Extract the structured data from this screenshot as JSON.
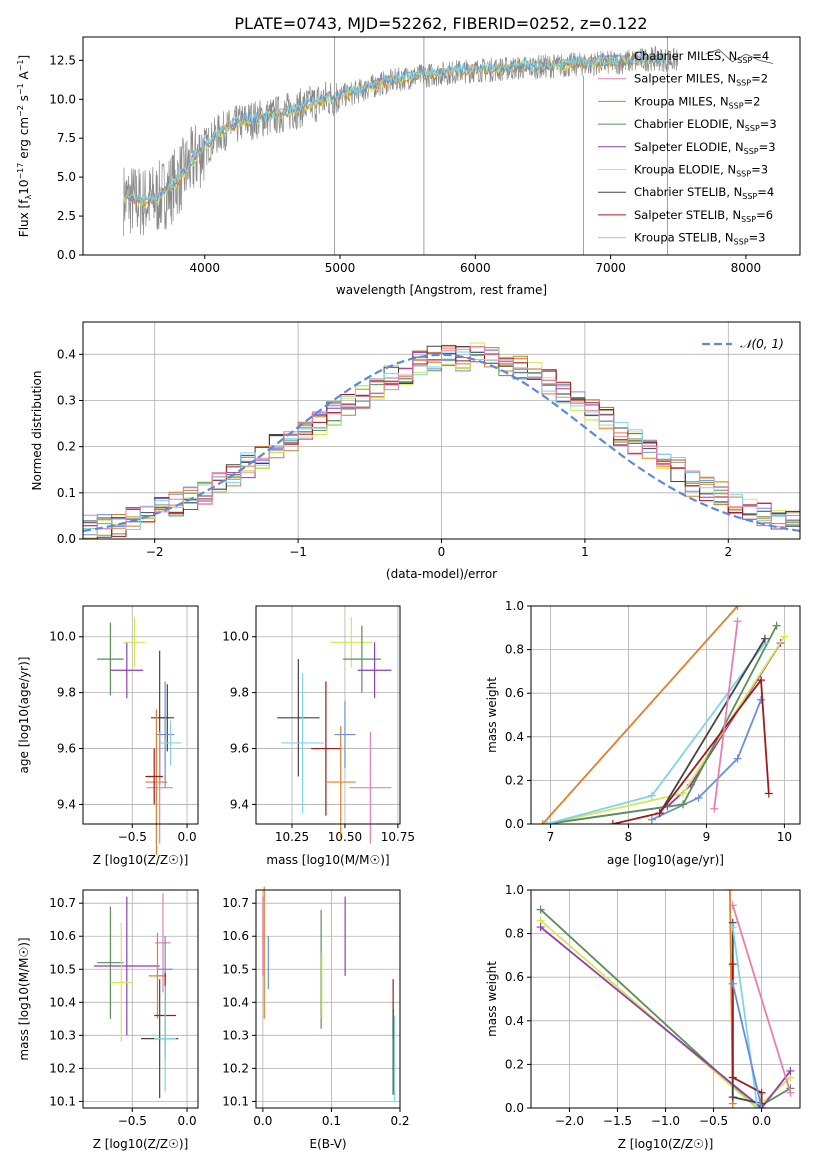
{
  "title": "PLATE=0743, MJD=52262, FIBERID=0252, z=0.122",
  "colors": {
    "chabrier_miles": "#6a8fd8",
    "salpeter_miles": "#e27f2a",
    "kroupa_miles": "#c4822f",
    "chabrier_elodie": "#5a8f5c",
    "salpeter_elodie": "#8e3fb0",
    "kroupa_elodie": "#d8e64e",
    "chabrier_stelib": "#444444",
    "salpeter_stelib": "#a01a1a",
    "kroupa_stelib": "#7fd4e6",
    "pink": "#e680b0",
    "data": "#8a8a8a",
    "gauss": "#5b8ad8"
  },
  "chart_data": [
    {
      "type": "line",
      "xlabel": "wavelength [Angstrom, rest frame]",
      "ylabel": "Flux [f_λ 10^-17 erg cm^-2 s^-1 A^-1]",
      "xlim": [
        3100,
        8400
      ],
      "ylim": [
        0,
        14
      ],
      "xticks": [
        "4000",
        "5000",
        "6000",
        "7000",
        "8000"
      ],
      "yticks": [
        "0.0",
        "2.5",
        "5.0",
        "7.5",
        "10.0",
        "12.5"
      ],
      "legend": [
        {
          "label": "Chabrier MILES, N",
          "sub": "SSP",
          "val": "=4",
          "color": "chabrier_miles"
        },
        {
          "label": "Salpeter MILES, N",
          "sub": "SSP",
          "val": "=2",
          "color": "pink"
        },
        {
          "label": "Kroupa MILES, N",
          "sub": "SSP",
          "val": "=2",
          "color": "kroupa_miles"
        },
        {
          "label": "Chabrier ELODIE, N",
          "sub": "SSP",
          "val": "=3",
          "color": "chabrier_elodie"
        },
        {
          "label": "Salpeter ELODIE, N",
          "sub": "SSP",
          "val": "=3",
          "color": "salpeter_elodie"
        },
        {
          "label": "Kroupa ELODIE, N",
          "sub": "SSP",
          "val": "=3",
          "color": "kroupa_elodie"
        },
        {
          "label": "Chabrier STELIB, N",
          "sub": "SSP",
          "val": "=4",
          "color": "chabrier_stelib"
        },
        {
          "label": "Salpeter STELIB, N",
          "sub": "SSP",
          "val": "=6",
          "color": "salpeter_stelib"
        },
        {
          "label": "Kroupa STELIB, N",
          "sub": "SSP",
          "val": "=3",
          "color": "kroupa_stelib"
        }
      ],
      "spectrum_trend": {
        "x": [
          3400,
          3550,
          3650,
          3750,
          3850,
          3950,
          4100,
          4300,
          4500,
          4700,
          4900,
          5100,
          5300,
          5500,
          5700,
          5900,
          6100,
          6300,
          6500,
          6700,
          6900,
          7100,
          7300,
          7500
        ],
        "y": [
          3.6,
          3.4,
          3.6,
          4.3,
          5.3,
          6.4,
          7.8,
          8.6,
          8.9,
          9.4,
          10.0,
          10.4,
          11.0,
          11.4,
          11.6,
          11.8,
          11.9,
          12.0,
          12.1,
          12.2,
          12.3,
          12.4,
          12.6,
          12.5
        ]
      },
      "tail": {
        "x": [
          7700,
          7800,
          7900,
          8000,
          8100,
          8200
        ],
        "y": [
          12.9,
          13.2,
          12.4,
          12.9,
          12.5,
          12.3
        ]
      },
      "spikes": [
        {
          "x": 4960,
          "y0": 0,
          "y1": 14
        },
        {
          "x": 5620,
          "y0": 0,
          "y1": 14
        },
        {
          "x": 6800,
          "y0": 0,
          "y1": 11.5
        },
        {
          "x": 7420,
          "y0": 0,
          "y1": 14
        }
      ]
    },
    {
      "type": "step",
      "xlabel": "(data-model)/error",
      "ylabel": "Normed distribution",
      "xlim": [
        -2.5,
        2.5
      ],
      "ylim": [
        0,
        0.47
      ],
      "xticks": [
        "−2",
        "−1",
        "0",
        "1",
        "2"
      ],
      "yticks": [
        "0.0",
        "0.1",
        "0.2",
        "0.3",
        "0.4"
      ],
      "legend": "𝒩(0, 1)",
      "bin_edges_start": -2.5,
      "bin_width": 0.1,
      "series_base": [
        0.025,
        0.028,
        0.033,
        0.045,
        0.05,
        0.065,
        0.075,
        0.09,
        0.1,
        0.12,
        0.14,
        0.16,
        0.18,
        0.2,
        0.215,
        0.23,
        0.25,
        0.27,
        0.29,
        0.31,
        0.33,
        0.35,
        0.36,
        0.38,
        0.39,
        0.4,
        0.39,
        0.4,
        0.39,
        0.38,
        0.37,
        0.36,
        0.34,
        0.32,
        0.3,
        0.28,
        0.26,
        0.23,
        0.21,
        0.19,
        0.17,
        0.15,
        0.12,
        0.11,
        0.1,
        0.08,
        0.07,
        0.055,
        0.045,
        0.035
      ]
    },
    {
      "type": "errorbar",
      "xlabel": "Z [log10(Z/Z☉)]",
      "ylabel": "age  [log10(age/yr)]",
      "xlim": [
        -0.95,
        0.1
      ],
      "ylim": [
        9.33,
        10.11
      ],
      "xticks": [
        {
          "v": -0.5,
          "t": "−0.5"
        },
        {
          "v": 0.0,
          "t": "0.0"
        }
      ],
      "yticks": [
        {
          "v": 9.4,
          "t": "9.4"
        },
        {
          "v": 9.6,
          "t": "9.6"
        },
        {
          "v": 9.8,
          "t": "9.8"
        },
        {
          "v": 10.0,
          "t": "10.0"
        }
      ],
      "points": [
        {
          "x": -0.7,
          "y": 9.92,
          "dx": 0.12,
          "dy": 0.13,
          "color": "chabrier_elodie"
        },
        {
          "x": -0.55,
          "y": 9.88,
          "dx": 0.15,
          "dy": 0.1,
          "color": "salpeter_elodie"
        },
        {
          "x": -0.48,
          "y": 9.98,
          "dx": 0.1,
          "dy": 0.09,
          "color": "kroupa_elodie"
        },
        {
          "x": -0.25,
          "y": 9.71,
          "dx": 0.08,
          "dy": 0.24,
          "color": "chabrier_stelib"
        },
        {
          "x": -0.18,
          "y": 9.71,
          "dx": 0.06,
          "dy": 0.12,
          "color": "chabrier_stelib"
        },
        {
          "x": -0.2,
          "y": 9.65,
          "dx": 0.08,
          "dy": 0.19,
          "color": "chabrier_miles"
        },
        {
          "x": -0.28,
          "y": 9.48,
          "dx": 0.1,
          "dy": 0.26,
          "color": "salpeter_miles"
        },
        {
          "x": -0.25,
          "y": 9.46,
          "dx": 0.12,
          "dy": 0.2,
          "color": "pink"
        },
        {
          "x": -0.15,
          "y": 9.62,
          "dx": 0.1,
          "dy": 0.08,
          "color": "kroupa_stelib"
        },
        {
          "x": -0.3,
          "y": 9.5,
          "dx": 0.08,
          "dy": 0.1,
          "color": "salpeter_stelib"
        }
      ]
    },
    {
      "type": "errorbar",
      "xlabel": "mass [log10(M/M☉)]",
      "ylabel": "",
      "xlim": [
        10.08,
        10.76
      ],
      "ylim": [
        9.33,
        10.11
      ],
      "xticks": [
        {
          "v": 10.25,
          "t": "10.25"
        },
        {
          "v": 10.5,
          "t": "10.50"
        },
        {
          "v": 10.75,
          "t": "10.75"
        }
      ],
      "yticks": [
        {
          "v": 9.4,
          "t": "9.4"
        },
        {
          "v": 9.6,
          "t": "9.6"
        },
        {
          "v": 9.8,
          "t": "9.8"
        },
        {
          "v": 10.0,
          "t": "10.0"
        }
      ],
      "points": [
        {
          "x": 10.28,
          "y": 9.71,
          "dx": 0.1,
          "dy": 0.21,
          "color": "chabrier_stelib"
        },
        {
          "x": 10.3,
          "y": 9.62,
          "dx": 0.1,
          "dy": 0.25,
          "color": "kroupa_stelib"
        },
        {
          "x": 10.41,
          "y": 9.6,
          "dx": 0.07,
          "dy": 0.24,
          "color": "salpeter_stelib"
        },
        {
          "x": 10.48,
          "y": 9.48,
          "dx": 0.07,
          "dy": 0.2,
          "color": "salpeter_miles"
        },
        {
          "x": 10.5,
          "y": 9.65,
          "dx": 0.05,
          "dy": 0.12,
          "color": "chabrier_miles"
        },
        {
          "x": 10.53,
          "y": 9.98,
          "dx": 0.1,
          "dy": 0.09,
          "color": "kroupa_elodie"
        },
        {
          "x": 10.58,
          "y": 9.92,
          "dx": 0.09,
          "dy": 0.12,
          "color": "chabrier_elodie"
        },
        {
          "x": 10.64,
          "y": 9.88,
          "dx": 0.08,
          "dy": 0.1,
          "color": "salpeter_elodie"
        },
        {
          "x": 10.62,
          "y": 9.46,
          "dx": 0.1,
          "dy": 0.2,
          "color": "pink"
        }
      ]
    },
    {
      "type": "line",
      "xlabel": "age  [log10(age/yr)]",
      "ylabel": "mass weight",
      "xlim": [
        6.75,
        10.2
      ],
      "ylim": [
        0,
        1
      ],
      "xticks": [
        {
          "v": 7,
          "t": "7"
        },
        {
          "v": 8,
          "t": "8"
        },
        {
          "v": 9,
          "t": "9"
        },
        {
          "v": 10,
          "t": "10"
        }
      ],
      "yticks": [
        {
          "v": 0,
          "t": "0.0"
        },
        {
          "v": 0.2,
          "t": "0.2"
        },
        {
          "v": 0.4,
          "t": "0.4"
        },
        {
          "v": 0.6,
          "t": "0.6"
        },
        {
          "v": 0.8,
          "t": "0.8"
        },
        {
          "v": 1,
          "t": "1.0"
        }
      ],
      "series": [
        {
          "color": "salpeter_miles",
          "x": [
            6.9,
            9.4
          ],
          "y": [
            0.0,
            1.0
          ]
        },
        {
          "color": "chabrier_miles",
          "x": [
            8.3,
            8.9,
            9.4,
            9.7
          ],
          "y": [
            0.02,
            0.12,
            0.3,
            0.57
          ]
        },
        {
          "color": "salpeter_elodie",
          "x": [
            6.95,
            8.5,
            8.8,
            9.95
          ],
          "y": [
            0.0,
            0.08,
            0.18,
            0.83
          ]
        },
        {
          "color": "kroupa_elodie",
          "x": [
            6.95,
            8.7,
            10.0
          ],
          "y": [
            0.0,
            0.14,
            0.86
          ]
        },
        {
          "color": "chabrier_elodie",
          "x": [
            6.95,
            8.7,
            9.9
          ],
          "y": [
            0.0,
            0.09,
            0.91
          ]
        },
        {
          "color": "kroupa_stelib",
          "x": [
            6.95,
            8.3,
            9.75
          ],
          "y": [
            0.0,
            0.13,
            0.83
          ]
        },
        {
          "color": "chabrier_stelib",
          "x": [
            8.4,
            9.75
          ],
          "y": [
            0.05,
            0.85
          ]
        },
        {
          "color": "salpeter_stelib",
          "x": [
            7.8,
            8.4,
            9.7,
            9.8
          ],
          "y": [
            0.0,
            0.05,
            0.66,
            0.14
          ]
        },
        {
          "color": "pink",
          "x": [
            9.1,
            9.4
          ],
          "y": [
            0.07,
            0.93
          ]
        }
      ]
    },
    {
      "type": "errorbar",
      "xlabel": "Z [log10(Z/Z☉)]",
      "ylabel": "mass [log10(M/M☉)]",
      "xlim": [
        -0.95,
        0.1
      ],
      "ylim": [
        10.08,
        10.74
      ],
      "xticks": [
        {
          "v": -0.5,
          "t": "−0.5"
        },
        {
          "v": 0.0,
          "t": "0.0"
        }
      ],
      "yticks": [
        {
          "v": 10.1,
          "t": "10.1"
        },
        {
          "v": 10.2,
          "t": "10.2"
        },
        {
          "v": 10.3,
          "t": "10.3"
        },
        {
          "v": 10.4,
          "t": "10.4"
        },
        {
          "v": 10.5,
          "t": "10.5"
        },
        {
          "v": 10.6,
          "t": "10.6"
        },
        {
          "v": 10.7,
          "t": "10.7"
        }
      ],
      "points": [
        {
          "x": -0.7,
          "y": 10.52,
          "dx": 0.12,
          "dy": 0.17,
          "color": "chabrier_elodie"
        },
        {
          "x": -0.55,
          "y": 10.51,
          "dx": 0.3,
          "dy": 0.21,
          "color": "salpeter_elodie"
        },
        {
          "x": -0.6,
          "y": 10.46,
          "dx": 0.1,
          "dy": 0.18,
          "color": "kroupa_elodie"
        },
        {
          "x": -0.22,
          "y": 10.58,
          "dx": 0.07,
          "dy": 0.15,
          "color": "pink"
        },
        {
          "x": -0.2,
          "y": 10.5,
          "dx": 0.07,
          "dy": 0.1,
          "color": "chabrier_miles"
        },
        {
          "x": -0.27,
          "y": 10.48,
          "dx": 0.08,
          "dy": 0.13,
          "color": "salpeter_miles"
        },
        {
          "x": -0.2,
          "y": 10.36,
          "dx": 0.1,
          "dy": 0.13,
          "color": "salpeter_stelib"
        },
        {
          "x": -0.25,
          "y": 10.29,
          "dx": 0.17,
          "dy": 0.18,
          "color": "chabrier_stelib"
        },
        {
          "x": -0.2,
          "y": 10.29,
          "dx": 0.1,
          "dy": 0.16,
          "color": "kroupa_stelib"
        }
      ]
    },
    {
      "type": "errorbar",
      "xlabel": "E(B-V)",
      "ylabel": "",
      "xlim": [
        -0.01,
        0.2
      ],
      "ylim": [
        10.08,
        10.74
      ],
      "xticks": [
        {
          "v": 0.0,
          "t": "0.0"
        },
        {
          "v": 0.1,
          "t": "0.1"
        },
        {
          "v": 0.2,
          "t": "0.2"
        }
      ],
      "yticks": [
        {
          "v": 10.1,
          "t": "10.1"
        },
        {
          "v": 10.2,
          "t": "10.2"
        },
        {
          "v": 10.3,
          "t": "10.3"
        },
        {
          "v": 10.4,
          "t": "10.4"
        },
        {
          "v": 10.5,
          "t": "10.5"
        },
        {
          "v": 10.6,
          "t": "10.6"
        },
        {
          "v": 10.7,
          "t": "10.7"
        }
      ],
      "points": [
        {
          "x": 0.002,
          "y": 10.55,
          "dx": 0.0,
          "dy": 0.2,
          "color": "salpeter_miles"
        },
        {
          "x": 0.008,
          "y": 10.52,
          "dx": 0.0,
          "dy": 0.08,
          "color": "chabrier_miles"
        },
        {
          "x": 0.0,
          "y": 10.6,
          "dx": 0.0,
          "dy": 0.12,
          "color": "pink"
        },
        {
          "x": 0.085,
          "y": 10.5,
          "dx": 0.0,
          "dy": 0.18,
          "color": "chabrier_elodie"
        },
        {
          "x": 0.086,
          "y": 10.45,
          "dx": 0.0,
          "dy": 0.1,
          "color": "kroupa_elodie"
        },
        {
          "x": 0.12,
          "y": 10.6,
          "dx": 0.0,
          "dy": 0.12,
          "color": "salpeter_elodie"
        },
        {
          "x": 0.19,
          "y": 10.38,
          "dx": 0.0,
          "dy": 0.09,
          "color": "salpeter_stelib"
        },
        {
          "x": 0.19,
          "y": 10.25,
          "dx": 0.0,
          "dy": 0.13,
          "color": "chabrier_stelib"
        },
        {
          "x": 0.192,
          "y": 10.23,
          "dx": 0.0,
          "dy": 0.13,
          "color": "kroupa_stelib"
        }
      ]
    },
    {
      "type": "line",
      "xlabel": "Z [log10(Z/Z☉)]",
      "ylabel": "mass weight",
      "xlim": [
        -2.4,
        0.4
      ],
      "ylim": [
        0,
        1
      ],
      "xticks": [
        {
          "v": -2.0,
          "t": "−2.0"
        },
        {
          "v": -1.5,
          "t": "−1.5"
        },
        {
          "v": -1.0,
          "t": "−1.0"
        },
        {
          "v": -0.5,
          "t": "−0.5"
        },
        {
          "v": 0.0,
          "t": "0.0"
        }
      ],
      "yticks": [
        {
          "v": 0,
          "t": "0.0"
        },
        {
          "v": 0.2,
          "t": "0.2"
        },
        {
          "v": 0.4,
          "t": "0.4"
        },
        {
          "v": 0.6,
          "t": "0.6"
        },
        {
          "v": 0.8,
          "t": "0.8"
        },
        {
          "v": 1,
          "t": "1.0"
        }
      ],
      "series": [
        {
          "color": "chabrier_elodie",
          "x": [
            -2.3,
            -0.05,
            0.3
          ],
          "y": [
            0.91,
            0.0,
            0.09
          ]
        },
        {
          "color": "kroupa_elodie",
          "x": [
            -2.3,
            -0.05,
            0.3
          ],
          "y": [
            0.86,
            0.0,
            0.14
          ]
        },
        {
          "color": "salpeter_elodie",
          "x": [
            -2.3,
            0.0,
            0.3
          ],
          "y": [
            0.83,
            0.0,
            0.17
          ]
        },
        {
          "color": "salpeter_miles",
          "x": [
            -0.33,
            -0.3
          ],
          "y": [
            1.0,
            0.02
          ]
        },
        {
          "color": "pink",
          "x": [
            -0.3,
            0.3
          ],
          "y": [
            0.93,
            0.07
          ]
        },
        {
          "color": "chabrier_stelib",
          "x": [
            -0.3,
            -0.3,
            0.0
          ],
          "y": [
            0.85,
            0.05,
            0.02
          ]
        },
        {
          "color": "kroupa_stelib",
          "x": [
            -0.3,
            -0.05
          ],
          "y": [
            0.83,
            0.02
          ]
        },
        {
          "color": "salpeter_stelib",
          "x": [
            -0.3,
            -0.3,
            0.0,
            0.0
          ],
          "y": [
            0.66,
            0.14,
            0.07,
            0.0
          ]
        },
        {
          "color": "chabrier_miles",
          "x": [
            -0.3,
            0.0
          ],
          "y": [
            0.57,
            0.0
          ]
        }
      ]
    }
  ]
}
